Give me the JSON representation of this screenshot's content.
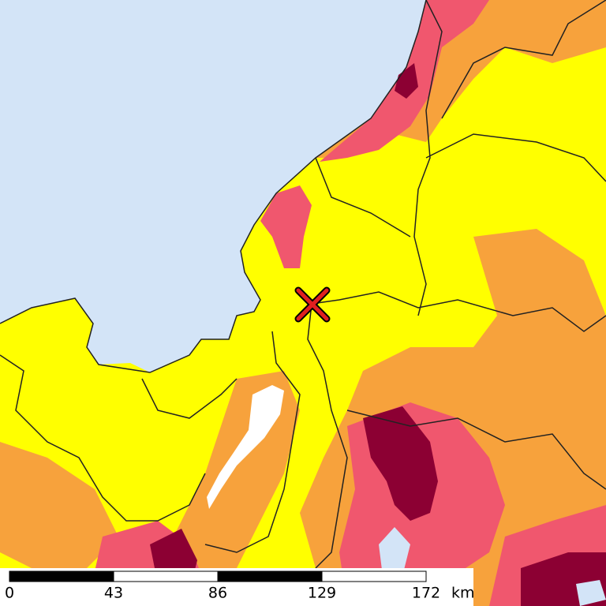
{
  "scale_bar": {
    "ticks": [
      "0",
      "43",
      "86",
      "129",
      "172"
    ],
    "unit": "km"
  }
}
